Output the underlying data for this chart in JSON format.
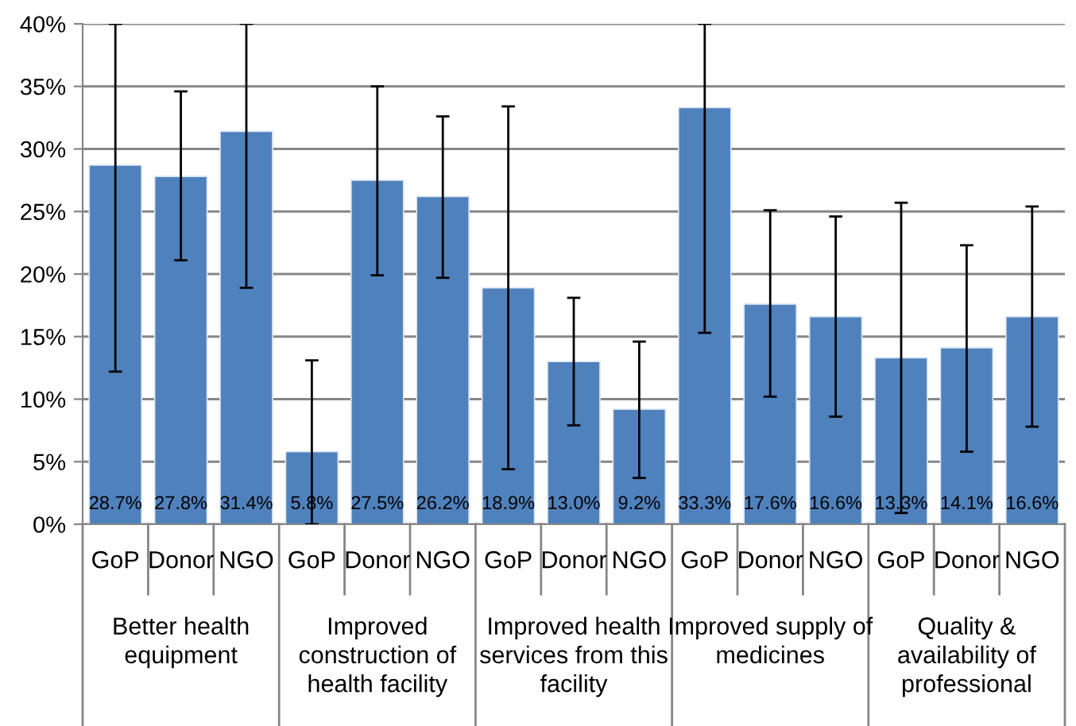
{
  "chart_data": {
    "type": "bar",
    "categories": [
      "GoP",
      "Donor",
      "NGO",
      "GoP",
      "Donor",
      "NGO",
      "GoP",
      "Donor",
      "NGO",
      "GoP",
      "Donor",
      "NGO",
      "GoP",
      "Donor",
      "NGO"
    ],
    "values": [
      28.7,
      27.8,
      31.4,
      5.8,
      27.5,
      26.2,
      18.9,
      13.0,
      9.2,
      33.3,
      17.6,
      16.6,
      13.3,
      14.1,
      16.6
    ],
    "value_labels": [
      "28.7%",
      "27.8%",
      "31.4%",
      "5.8%",
      "27.5%",
      "26.2%",
      "18.9%",
      "13.0%",
      "9.2%",
      "33.3%",
      "17.6%",
      "16.6%",
      "13.3%",
      "14.1%",
      "16.6%"
    ],
    "errors": [
      [
        12.2,
        40
      ],
      [
        21.1,
        34.6
      ],
      [
        18.9,
        40
      ],
      [
        0,
        13.1
      ],
      [
        19.9,
        35.0
      ],
      [
        19.7,
        32.6
      ],
      [
        4.4,
        33.4
      ],
      [
        7.9,
        18.1
      ],
      [
        3.7,
        14.6
      ],
      [
        15.3,
        40
      ],
      [
        10.2,
        25.1
      ],
      [
        8.6,
        24.6
      ],
      [
        0.9,
        25.7
      ],
      [
        5.8,
        22.3
      ],
      [
        7.8,
        25.4
      ]
    ],
    "color": "#4f81bd",
    "ylim": [
      0,
      40
    ],
    "yticks": [
      {
        "value": 0,
        "label": "0%"
      },
      {
        "value": 5,
        "label": "5%"
      },
      {
        "value": 10,
        "label": "10%"
      },
      {
        "value": 15,
        "label": "15%"
      },
      {
        "value": 20,
        "label": "20%"
      },
      {
        "value": 25,
        "label": "25%"
      },
      {
        "value": 30,
        "label": "30%"
      },
      {
        "value": 35,
        "label": "35%"
      },
      {
        "value": 40,
        "label": "40%"
      }
    ],
    "grid": "y",
    "annotations": [
      "Better health\nequipment",
      "Improved\nconstruction of\nhealth facility",
      "Improved health\nservices from this\nfacility",
      "Improved supply of\nmedicines",
      "Quality &\navailability of\nprofessional"
    ]
  }
}
